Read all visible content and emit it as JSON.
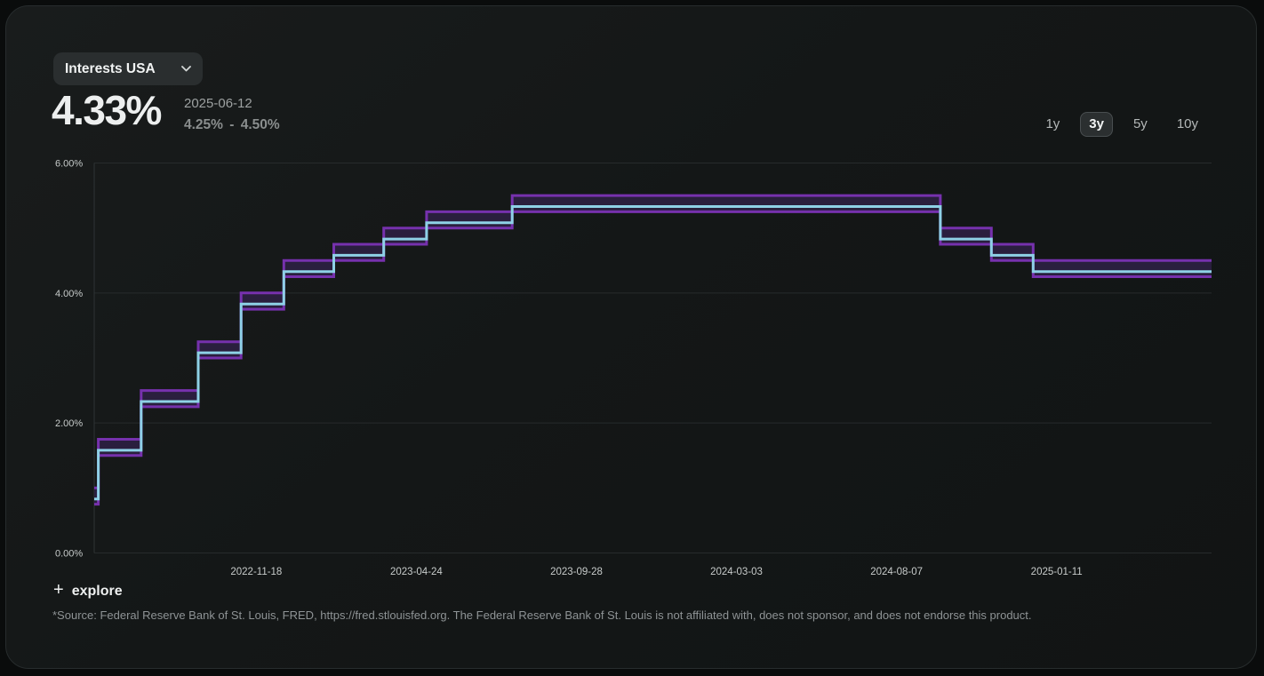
{
  "header": {
    "dropdown_label": "Interests USA",
    "current_value": "4.33%",
    "current_date": "2025-06-12",
    "current_range": "4.25% - 4.50%",
    "range_buttons": [
      {
        "label": "1y",
        "selected": false
      },
      {
        "label": "3y",
        "selected": true
      },
      {
        "label": "5y",
        "selected": false
      },
      {
        "label": "10y",
        "selected": false
      }
    ]
  },
  "footer": {
    "explore_plus": "+",
    "explore_label": "explore",
    "source_text": "*Source: Federal Reserve Bank of St. Louis, FRED, https://fred.stlouisfed.org. The Federal Reserve Bank of St. Louis is not affiliated with, does not sponsor, and does not endorse this product."
  },
  "chart_data": {
    "type": "line",
    "subtype": "step-band",
    "x_range": [
      "2022-06-12",
      "2025-06-12"
    ],
    "ylim": [
      0,
      6
    ],
    "grid": true,
    "legend": "none",
    "y_ticks": [
      {
        "value": 0,
        "label": "0.00%"
      },
      {
        "value": 2,
        "label": "2.00%"
      },
      {
        "value": 4,
        "label": "4.00%"
      },
      {
        "value": 6,
        "label": "6.00%"
      }
    ],
    "x_ticks": [
      {
        "date": "2022-11-18",
        "label": "2022-11-18"
      },
      {
        "date": "2023-04-24",
        "label": "2023-04-24"
      },
      {
        "date": "2023-09-28",
        "label": "2023-09-28"
      },
      {
        "date": "2024-03-03",
        "label": "2024-03-03"
      },
      {
        "date": "2024-08-07",
        "label": "2024-08-07"
      },
      {
        "date": "2025-01-11",
        "label": "2025-01-11"
      }
    ],
    "colors": {
      "band_line": "#7631ad",
      "band_fill": "#2a1f3e",
      "effective_line": "#8ed1e6"
    },
    "steps": [
      {
        "date": "2022-06-12",
        "range_low": 0.75,
        "range_high": 1.0,
        "effective": 0.83
      },
      {
        "date": "2022-06-16",
        "range_low": 1.5,
        "range_high": 1.75,
        "effective": 1.58
      },
      {
        "date": "2022-07-28",
        "range_low": 2.25,
        "range_high": 2.5,
        "effective": 2.33
      },
      {
        "date": "2022-09-22",
        "range_low": 3.0,
        "range_high": 3.25,
        "effective": 3.08
      },
      {
        "date": "2022-11-03",
        "range_low": 3.75,
        "range_high": 4.0,
        "effective": 3.83
      },
      {
        "date": "2022-12-15",
        "range_low": 4.25,
        "range_high": 4.5,
        "effective": 4.33
      },
      {
        "date": "2023-02-02",
        "range_low": 4.5,
        "range_high": 4.75,
        "effective": 4.58
      },
      {
        "date": "2023-03-23",
        "range_low": 4.75,
        "range_high": 5.0,
        "effective": 4.83
      },
      {
        "date": "2023-05-04",
        "range_low": 5.0,
        "range_high": 5.25,
        "effective": 5.08
      },
      {
        "date": "2023-07-27",
        "range_low": 5.25,
        "range_high": 5.5,
        "effective": 5.33
      },
      {
        "date": "2024-09-19",
        "range_low": 4.75,
        "range_high": 5.0,
        "effective": 4.83
      },
      {
        "date": "2024-11-08",
        "range_low": 4.5,
        "range_high": 4.75,
        "effective": 4.58
      },
      {
        "date": "2024-12-19",
        "range_low": 4.25,
        "range_high": 4.5,
        "effective": 4.33
      }
    ]
  }
}
